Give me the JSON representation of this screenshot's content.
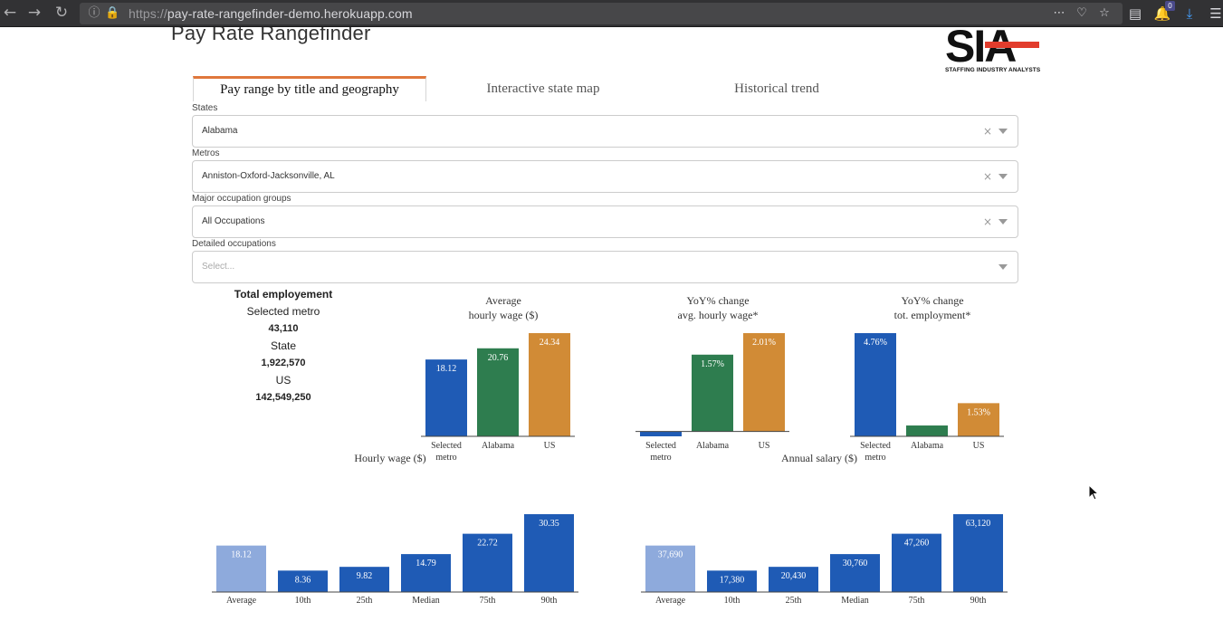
{
  "browser": {
    "url_prefix": "https://",
    "url_host": "pay-rate-rangefinder-demo.herokuapp.com",
    "notification_count": "0"
  },
  "app": {
    "title": "Pay Rate Rangefinder",
    "logo_text": "SIA",
    "logo_subtitle": "STAFFING INDUSTRY ANALYSTS"
  },
  "tabs": [
    "Pay range by title and geography",
    "Interactive state map",
    "Historical trend"
  ],
  "filters": {
    "states": {
      "label": "States",
      "value": "Alabama"
    },
    "metros": {
      "label": "Metros",
      "value": "Anniston-Oxford-Jacksonville, AL"
    },
    "major_groups": {
      "label": "Major occupation groups",
      "value": "All Occupations"
    },
    "detailed": {
      "label": "Detailed occupations",
      "placeholder": "Select..."
    }
  },
  "employment": {
    "title": "Total employement",
    "metro_label": "Selected metro",
    "metro_value": "43,110",
    "state_label": "State",
    "state_value": "1,922,570",
    "us_label": "US",
    "us_value": "142,549,250"
  },
  "colors": {
    "blue": "#1f5bb5",
    "green": "#2e7d4f",
    "orange": "#d18b36",
    "light_blue": "#8eaadc",
    "accent": "#e0773c"
  },
  "chart_data": [
    {
      "id": "avg-wage",
      "type": "bar",
      "title": [
        "Average",
        "hourly wage ($)"
      ],
      "categories": [
        [
          "Selected",
          "metro"
        ],
        [
          "Alabama"
        ],
        [
          "US"
        ]
      ],
      "values": [
        18.12,
        20.76,
        24.34
      ],
      "labels": [
        "18.12",
        "20.76",
        "24.34"
      ],
      "colors": [
        "blue",
        "green",
        "orange"
      ],
      "ylim": [
        0,
        24.34
      ]
    },
    {
      "id": "yoy-wage",
      "type": "bar",
      "title": [
        "YoY% change",
        "avg. hourly wage*"
      ],
      "categories": [
        [
          "Selected",
          "metro"
        ],
        [
          "Alabama"
        ],
        [
          "US"
        ]
      ],
      "values": [
        -0.1,
        1.57,
        2.01
      ],
      "labels": [
        "",
        "1.57%",
        "2.01%"
      ],
      "colors": [
        "blue",
        "green",
        "orange"
      ],
      "ylim": [
        -0.1,
        2.01
      ]
    },
    {
      "id": "yoy-emp",
      "type": "bar",
      "title": [
        "YoY% change",
        "tot. employment*"
      ],
      "categories": [
        [
          "Selected",
          "metro"
        ],
        [
          "Alabama"
        ],
        [
          "US"
        ]
      ],
      "values": [
        4.76,
        0.5,
        1.53
      ],
      "labels": [
        "4.76%",
        "",
        "1.53%"
      ],
      "colors": [
        "blue",
        "green",
        "orange"
      ],
      "ylim": [
        0,
        4.76
      ]
    },
    {
      "id": "hourly-dist",
      "type": "bar",
      "title": [
        "Hourly wage ($)"
      ],
      "categories": [
        [
          "Average"
        ],
        [
          "10th"
        ],
        [
          "25th"
        ],
        [
          "Median"
        ],
        [
          "75th"
        ],
        [
          "90th"
        ]
      ],
      "values": [
        18.12,
        8.36,
        9.82,
        14.79,
        22.72,
        30.35
      ],
      "labels": [
        "18.12",
        "8.36",
        "9.82",
        "14.79",
        "22.72",
        "30.35"
      ],
      "colors": [
        "light_blue",
        "blue",
        "blue",
        "blue",
        "blue",
        "blue"
      ],
      "ylim": [
        0,
        30.35
      ]
    },
    {
      "id": "annual-dist",
      "type": "bar",
      "title": [
        "Annual salary ($)"
      ],
      "categories": [
        [
          "Average"
        ],
        [
          "10th"
        ],
        [
          "25th"
        ],
        [
          "Median"
        ],
        [
          "75th"
        ],
        [
          "90th"
        ]
      ],
      "values": [
        37690,
        17380,
        20430,
        30760,
        47260,
        63120
      ],
      "labels": [
        "37,690",
        "17,380",
        "20,430",
        "30,760",
        "47,260",
        "63,120"
      ],
      "colors": [
        "light_blue",
        "blue",
        "blue",
        "blue",
        "blue",
        "blue"
      ],
      "ylim": [
        0,
        63120
      ]
    }
  ]
}
